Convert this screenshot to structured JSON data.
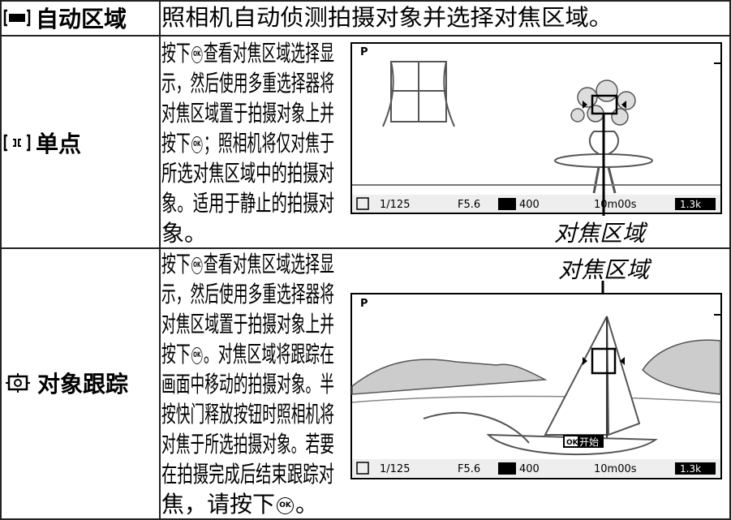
{
  "ok_label": "OK",
  "rows": [
    {
      "mode": "自动区域",
      "description": [
        [
          "照相机自动侦测拍摄对象并选择对焦区域。"
        ]
      ]
    },
    {
      "mode": "单点",
      "description": [
        [
          "按下",
          "查看对焦区域选择显"
        ],
        [
          "示，然后使用多重选择器将"
        ],
        [
          "对焦区域置于拍摄对象上并"
        ],
        [
          "按下",
          "；照相机将仅对焦于"
        ],
        [
          "所选对焦区域中的拍摄对"
        ],
        [
          "象。适用于静止的拍摄对"
        ],
        [
          "象。"
        ]
      ],
      "figure": {
        "caption": "对焦区域",
        "mode": "P",
        "shutter": "1/125",
        "aperture": "F5.6",
        "iso": "400",
        "remaining": "10m00s",
        "size": "1.3k"
      }
    },
    {
      "mode": "对象跟踪",
      "description": [
        [
          "按下",
          "查看对焦区域选择显"
        ],
        [
          "示，然后使用多重选择器将"
        ],
        [
          "对焦区域置于拍摄对象上并"
        ],
        [
          "按下",
          "。对焦区域将跟踪在"
        ],
        [
          "画面中移动的拍摄对象。半"
        ],
        [
          "按快门释放按钮时照相机将"
        ],
        [
          "对焦于所选拍摄对象。若要"
        ],
        [
          "在拍摄完成后结束跟踪对"
        ],
        [
          "焦，请按下",
          "。"
        ]
      ],
      "figure": {
        "caption": "对焦区域",
        "mode": "P",
        "shutter": "1/125",
        "aperture": "F5.6",
        "iso": "400",
        "remaining": "10m00s",
        "size": "1.3k",
        "start": "开始"
      }
    }
  ]
}
